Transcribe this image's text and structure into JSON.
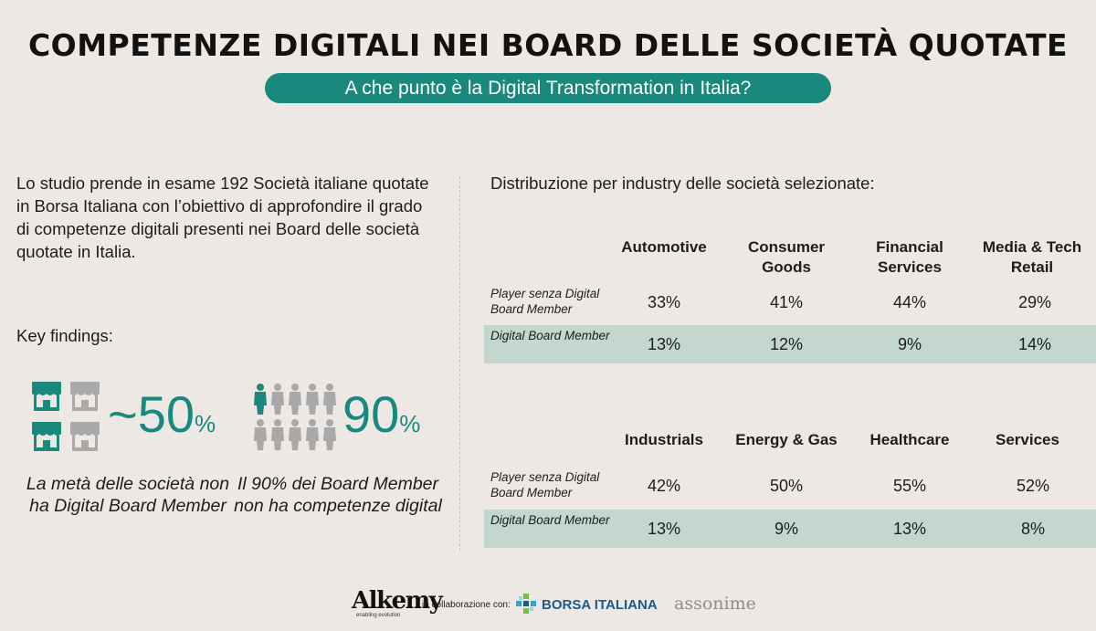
{
  "header": {
    "title": "COMPETENZE DIGITALI NEI BOARD DELLE SOCIETÀ QUOTATE",
    "subtitle": "A che punto è la Digital Transformation in Italia?"
  },
  "intro": {
    "text": "Lo studio prende in esame 192 Società italiane quotate in Borsa Italiana con l’obiettivo di approfondire il grado di competenze digitali presenti nei Board delle società quotate in Italia."
  },
  "key_findings": {
    "label": "Key findings:",
    "finding1": {
      "value": "~50",
      "unit": "%",
      "text": "La metà delle società non ha Digital Board Member",
      "icon": "store-icon"
    },
    "finding2": {
      "value": "90",
      "unit": "%",
      "text": "Il 90% dei Board Member non ha competenze digital",
      "icon": "person-icon"
    }
  },
  "distribution": {
    "label": "Distribuzione per industry delle società selezionate:",
    "row_labels": {
      "without": "Player senza Digital Board Member",
      "with": "Digital Board Member"
    },
    "groups": [
      {
        "industries": [
          "Automotive",
          "Consumer Goods",
          "Financial Services",
          "Media & Tech Retail"
        ],
        "without": [
          "33%",
          "41%",
          "44%",
          "29%"
        ],
        "with": [
          "13%",
          "12%",
          "9%",
          "14%"
        ]
      },
      {
        "industries": [
          "Industrials",
          "Energy & Gas",
          "Healthcare",
          "Services"
        ],
        "without": [
          "42%",
          "50%",
          "55%",
          "52%"
        ],
        "with": [
          "13%",
          "9%",
          "13%",
          "8%"
        ]
      }
    ]
  },
  "footer": {
    "alkemy": "Alkemy",
    "alkemy_tagline": "enabling evolution",
    "collab": "in collaborazione con:",
    "borsa": "BORSA ITALIANA",
    "assonime": "assonime"
  },
  "colors": {
    "accent": "#19897d",
    "teal_row": "#c3d7cf",
    "gray_icon": "#a9a9a9",
    "background": "#ede8e3"
  }
}
